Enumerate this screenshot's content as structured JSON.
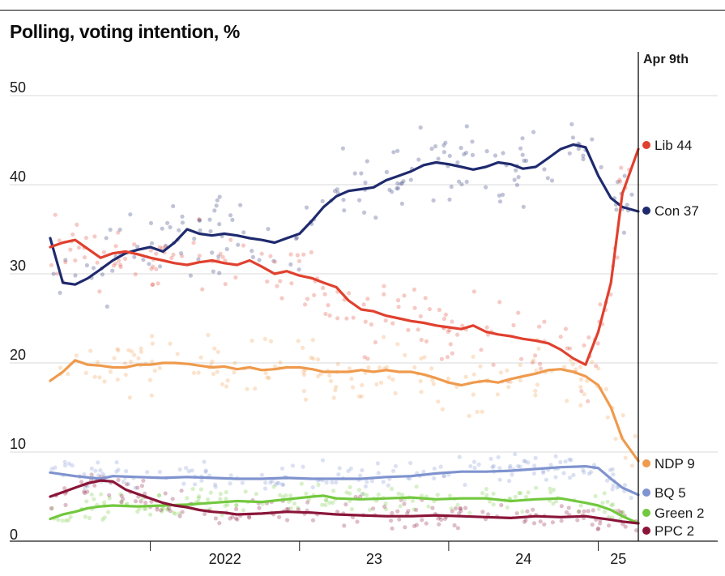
{
  "chart_data": {
    "type": "line",
    "title": "Polling, voting intention, %",
    "date_label": "Apr 9th",
    "xlabel": "",
    "ylabel": "",
    "x_ticks": [
      "2022",
      "23",
      "24",
      "25"
    ],
    "ylim": [
      0,
      50
    ],
    "y_ticks": [
      0,
      10,
      20,
      30,
      40,
      50
    ],
    "x_range": [
      "2021-05",
      "2025-04-09"
    ],
    "grid": true,
    "legend_placement": "right, end-of-line labels",
    "series": [
      {
        "name": "Con",
        "label": "Con 37",
        "color": "#1f2a6e",
        "points": [
          [
            "2021-05",
            34.0
          ],
          [
            "2021-06",
            29.0
          ],
          [
            "2021-07",
            28.8
          ],
          [
            "2021-08",
            29.5
          ],
          [
            "2021-09",
            30.5
          ],
          [
            "2021-10",
            31.5
          ],
          [
            "2021-11",
            32.3
          ],
          [
            "2021-12",
            32.7
          ],
          [
            "2022-01",
            33.0
          ],
          [
            "2022-02",
            32.5
          ],
          [
            "2022-03",
            33.5
          ],
          [
            "2022-04",
            35.0
          ],
          [
            "2022-05",
            34.5
          ],
          [
            "2022-06",
            34.3
          ],
          [
            "2022-07",
            34.5
          ],
          [
            "2022-08",
            34.3
          ],
          [
            "2022-09",
            34.0
          ],
          [
            "2022-10",
            33.8
          ],
          [
            "2022-11",
            33.5
          ],
          [
            "2022-12",
            34.0
          ],
          [
            "2023-01",
            34.5
          ],
          [
            "2023-02",
            36.0
          ],
          [
            "2023-03",
            37.5
          ],
          [
            "2023-04",
            38.7
          ],
          [
            "2023-05",
            39.3
          ],
          [
            "2023-06",
            39.5
          ],
          [
            "2023-07",
            39.7
          ],
          [
            "2023-08",
            40.5
          ],
          [
            "2023-09",
            41.0
          ],
          [
            "2023-10",
            41.5
          ],
          [
            "2023-11",
            42.2
          ],
          [
            "2023-12",
            42.5
          ],
          [
            "2024-01",
            42.3
          ],
          [
            "2024-02",
            42.0
          ],
          [
            "2024-03",
            41.7
          ],
          [
            "2024-04",
            42.0
          ],
          [
            "2024-05",
            42.5
          ],
          [
            "2024-06",
            42.3
          ],
          [
            "2024-07",
            41.8
          ],
          [
            "2024-08",
            42.0
          ],
          [
            "2024-09",
            43.0
          ],
          [
            "2024-10",
            44.0
          ],
          [
            "2024-11",
            44.5
          ],
          [
            "2024-12",
            44.2
          ],
          [
            "2025-01",
            41.0
          ],
          [
            "2025-02",
            38.5
          ],
          [
            "2025-03",
            37.5
          ],
          [
            "2025-04-09",
            37.0
          ]
        ]
      },
      {
        "name": "Lib",
        "label": "Lib 44",
        "color": "#e0402e",
        "points": [
          [
            "2021-05",
            33.0
          ],
          [
            "2021-06",
            33.5
          ],
          [
            "2021-07",
            33.8
          ],
          [
            "2021-08",
            32.8
          ],
          [
            "2021-09",
            31.8
          ],
          [
            "2021-10",
            32.3
          ],
          [
            "2021-11",
            32.5
          ],
          [
            "2021-12",
            32.2
          ],
          [
            "2022-01",
            31.8
          ],
          [
            "2022-02",
            31.5
          ],
          [
            "2022-03",
            31.2
          ],
          [
            "2022-04",
            31.0
          ],
          [
            "2022-05",
            31.3
          ],
          [
            "2022-06",
            31.5
          ],
          [
            "2022-07",
            31.2
          ],
          [
            "2022-08",
            31.0
          ],
          [
            "2022-09",
            31.5
          ],
          [
            "2022-10",
            30.8
          ],
          [
            "2022-11",
            30.0
          ],
          [
            "2022-12",
            30.3
          ],
          [
            "2023-01",
            29.8
          ],
          [
            "2023-02",
            29.5
          ],
          [
            "2023-03",
            29.0
          ],
          [
            "2023-04",
            28.5
          ],
          [
            "2023-05",
            27.0
          ],
          [
            "2023-06",
            26.0
          ],
          [
            "2023-07",
            25.8
          ],
          [
            "2023-08",
            25.3
          ],
          [
            "2023-09",
            25.0
          ],
          [
            "2023-10",
            24.7
          ],
          [
            "2023-11",
            24.5
          ],
          [
            "2023-12",
            24.2
          ],
          [
            "2024-01",
            24.0
          ],
          [
            "2024-02",
            23.8
          ],
          [
            "2024-03",
            24.2
          ],
          [
            "2024-04",
            23.5
          ],
          [
            "2024-05",
            23.2
          ],
          [
            "2024-06",
            23.0
          ],
          [
            "2024-07",
            22.7
          ],
          [
            "2024-08",
            22.5
          ],
          [
            "2024-09",
            22.2
          ],
          [
            "2024-10",
            21.5
          ],
          [
            "2024-11",
            20.5
          ],
          [
            "2024-12",
            19.8
          ],
          [
            "2025-01",
            23.5
          ],
          [
            "2025-02",
            29.0
          ],
          [
            "2025-03",
            39.0
          ],
          [
            "2025-04-09",
            44.0
          ]
        ]
      },
      {
        "name": "NDP",
        "label": "NDP 9",
        "color": "#ef9a4d",
        "points": [
          [
            "2021-05",
            18.0
          ],
          [
            "2021-06",
            19.0
          ],
          [
            "2021-07",
            20.3
          ],
          [
            "2021-08",
            19.8
          ],
          [
            "2021-09",
            19.7
          ],
          [
            "2021-10",
            19.5
          ],
          [
            "2021-11",
            19.5
          ],
          [
            "2021-12",
            19.8
          ],
          [
            "2022-01",
            19.8
          ],
          [
            "2022-02",
            20.0
          ],
          [
            "2022-03",
            20.0
          ],
          [
            "2022-04",
            19.9
          ],
          [
            "2022-05",
            19.7
          ],
          [
            "2022-06",
            19.5
          ],
          [
            "2022-07",
            19.6
          ],
          [
            "2022-08",
            19.3
          ],
          [
            "2022-09",
            19.5
          ],
          [
            "2022-10",
            19.2
          ],
          [
            "2022-11",
            19.3
          ],
          [
            "2022-12",
            19.5
          ],
          [
            "2023-01",
            19.5
          ],
          [
            "2023-02",
            19.3
          ],
          [
            "2023-03",
            19.0
          ],
          [
            "2023-04",
            19.0
          ],
          [
            "2023-05",
            19.0
          ],
          [
            "2023-06",
            19.2
          ],
          [
            "2023-07",
            19.0
          ],
          [
            "2023-08",
            19.2
          ],
          [
            "2023-09",
            19.0
          ],
          [
            "2023-10",
            19.0
          ],
          [
            "2023-11",
            18.7
          ],
          [
            "2023-12",
            18.3
          ],
          [
            "2024-01",
            17.8
          ],
          [
            "2024-02",
            17.5
          ],
          [
            "2024-03",
            17.8
          ],
          [
            "2024-04",
            18.0
          ],
          [
            "2024-05",
            17.8
          ],
          [
            "2024-06",
            18.2
          ],
          [
            "2024-07",
            18.5
          ],
          [
            "2024-08",
            18.8
          ],
          [
            "2024-09",
            19.2
          ],
          [
            "2024-10",
            19.3
          ],
          [
            "2024-11",
            19.0
          ],
          [
            "2024-12",
            18.5
          ],
          [
            "2025-01",
            17.5
          ],
          [
            "2025-02",
            15.0
          ],
          [
            "2025-03",
            11.5
          ],
          [
            "2025-04-09",
            9.0
          ]
        ]
      },
      {
        "name": "BQ",
        "label": "BQ 5",
        "color": "#7f93cf",
        "points": [
          [
            "2021-05",
            7.7
          ],
          [
            "2021-07",
            7.3
          ],
          [
            "2021-09",
            7.0
          ],
          [
            "2021-10",
            7.3
          ],
          [
            "2021-12",
            7.2
          ],
          [
            "2022-02",
            7.1
          ],
          [
            "2022-04",
            7.2
          ],
          [
            "2022-06",
            7.1
          ],
          [
            "2022-08",
            7.0
          ],
          [
            "2022-10",
            7.0
          ],
          [
            "2022-12",
            7.1
          ],
          [
            "2023-02",
            7.0
          ],
          [
            "2023-04",
            7.0
          ],
          [
            "2023-06",
            7.0
          ],
          [
            "2023-08",
            7.2
          ],
          [
            "2023-10",
            7.3
          ],
          [
            "2023-12",
            7.6
          ],
          [
            "2024-02",
            7.8
          ],
          [
            "2024-04",
            7.8
          ],
          [
            "2024-06",
            7.9
          ],
          [
            "2024-08",
            8.1
          ],
          [
            "2024-10",
            8.3
          ],
          [
            "2024-12",
            8.4
          ],
          [
            "2025-01",
            8.2
          ],
          [
            "2025-02",
            7.0
          ],
          [
            "2025-03",
            6.0
          ],
          [
            "2025-04-09",
            5.2
          ]
        ]
      },
      {
        "name": "Green",
        "label": "Green 2",
        "color": "#72c83e",
        "points": [
          [
            "2021-05",
            2.5
          ],
          [
            "2021-06",
            3.0
          ],
          [
            "2021-07",
            3.3
          ],
          [
            "2021-08",
            3.7
          ],
          [
            "2021-09",
            3.9
          ],
          [
            "2021-10",
            4.0
          ],
          [
            "2021-12",
            3.9
          ],
          [
            "2022-02",
            4.0
          ],
          [
            "2022-04",
            4.1
          ],
          [
            "2022-06",
            4.3
          ],
          [
            "2022-08",
            4.5
          ],
          [
            "2022-10",
            4.4
          ],
          [
            "2022-12",
            4.7
          ],
          [
            "2023-02",
            5.0
          ],
          [
            "2023-03",
            5.1
          ],
          [
            "2023-04",
            4.8
          ],
          [
            "2023-06",
            4.7
          ],
          [
            "2023-08",
            4.8
          ],
          [
            "2023-10",
            4.9
          ],
          [
            "2023-12",
            4.7
          ],
          [
            "2024-02",
            4.8
          ],
          [
            "2024-04",
            4.8
          ],
          [
            "2024-06",
            4.5
          ],
          [
            "2024-08",
            4.7
          ],
          [
            "2024-10",
            4.8
          ],
          [
            "2024-12",
            4.3
          ],
          [
            "2025-01",
            4.0
          ],
          [
            "2025-02",
            3.5
          ],
          [
            "2025-03",
            2.8
          ],
          [
            "2025-04-09",
            2.0
          ]
        ]
      },
      {
        "name": "PPC",
        "label": "PPC 2",
        "color": "#8a1538",
        "points": [
          [
            "2021-05",
            5.0
          ],
          [
            "2021-06",
            5.5
          ],
          [
            "2021-07",
            6.0
          ],
          [
            "2021-08",
            6.5
          ],
          [
            "2021-09",
            6.8
          ],
          [
            "2021-10",
            6.7
          ],
          [
            "2021-11",
            5.8
          ],
          [
            "2021-12",
            5.3
          ],
          [
            "2022-01",
            4.8
          ],
          [
            "2022-02",
            4.3
          ],
          [
            "2022-03",
            4.0
          ],
          [
            "2022-04",
            3.8
          ],
          [
            "2022-05",
            3.5
          ],
          [
            "2022-06",
            3.3
          ],
          [
            "2022-07",
            3.2
          ],
          [
            "2022-08",
            3.0
          ],
          [
            "2022-10",
            3.1
          ],
          [
            "2022-12",
            3.3
          ],
          [
            "2023-02",
            3.2
          ],
          [
            "2023-04",
            3.0
          ],
          [
            "2023-06",
            2.9
          ],
          [
            "2023-08",
            2.8
          ],
          [
            "2023-10",
            2.8
          ],
          [
            "2023-12",
            2.9
          ],
          [
            "2024-02",
            2.8
          ],
          [
            "2024-04",
            2.7
          ],
          [
            "2024-06",
            2.6
          ],
          [
            "2024-08",
            2.8
          ],
          [
            "2024-10",
            2.7
          ],
          [
            "2024-12",
            2.8
          ],
          [
            "2025-01",
            2.6
          ],
          [
            "2025-02",
            2.4
          ],
          [
            "2025-03",
            2.2
          ],
          [
            "2025-04-09",
            2.0
          ]
        ]
      }
    ]
  }
}
